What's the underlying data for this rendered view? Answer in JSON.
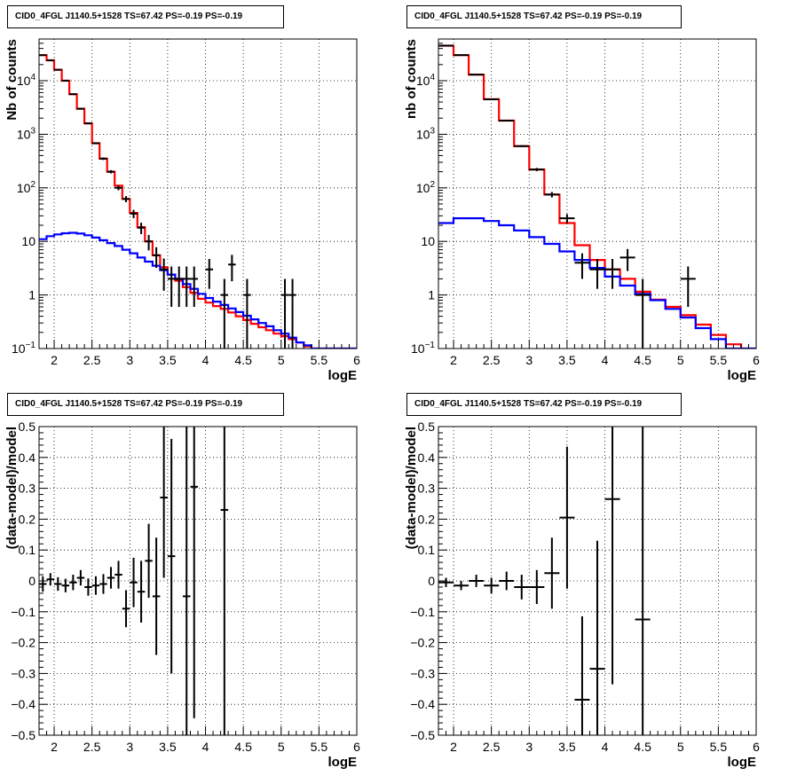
{
  "page": {
    "background": "#ffffff"
  },
  "chart_data": [
    {
      "type": "line",
      "title": "CID0_4FGL J1140.5+1528 TS=67.42 PS=-0.19 PS=-0.19",
      "xlabel": "logE",
      "ylabel": "Nb of counts",
      "xlim": [
        1.8,
        6
      ],
      "ylim": [
        0.1,
        60000
      ],
      "yscale": "log",
      "grid": true,
      "x_ticks": [
        2,
        2.5,
        3,
        3.5,
        4,
        4.5,
        5,
        5.5,
        6
      ],
      "x_tick_labels": [
        "2",
        "2.5",
        "3",
        "3.5",
        "4",
        "4.5",
        "5",
        "5.5",
        "6"
      ],
      "y_ticks": [
        0.1,
        1,
        10,
        100,
        1000,
        10000
      ],
      "y_tick_labels": [
        "10^-1",
        "1",
        "10",
        "10^2",
        "10^3",
        "10^4"
      ],
      "series": [
        {
          "kind": "step",
          "color": "#ff0000",
          "edges": [
            1.8,
            1.9,
            2.0,
            2.1,
            2.2,
            2.3,
            2.4,
            2.5,
            2.6,
            2.7,
            2.8,
            2.9,
            3.0,
            3.1,
            3.2,
            3.3,
            3.4,
            3.5,
            3.6,
            3.7,
            3.8,
            3.9,
            4.0,
            4.1,
            4.2,
            4.3,
            4.4,
            4.5,
            4.6,
            4.7,
            4.8,
            4.9,
            5.0,
            5.1,
            5.2,
            5.3,
            5.4,
            5.5,
            5.6,
            5.7,
            5.8,
            5.9,
            6.0
          ],
          "values": [
            30000,
            24000,
            16000,
            10000,
            5600,
            3000,
            1600,
            680,
            350,
            200,
            110,
            62,
            34,
            18.5,
            10,
            5.5,
            3.3,
            2.4,
            1.85,
            1.4,
            1.1,
            0.85,
            0.72,
            0.62,
            0.55,
            0.47,
            0.4,
            0.34,
            0.29,
            0.25,
            0.22,
            0.19,
            0.17,
            0.15,
            0.13,
            0.11,
            0.1,
            0.1,
            0.1,
            0.1,
            0.1,
            0.1
          ]
        },
        {
          "kind": "step",
          "color": "#0000ff",
          "edges": [
            1.8,
            1.9,
            2.0,
            2.1,
            2.2,
            2.3,
            2.4,
            2.5,
            2.6,
            2.7,
            2.8,
            2.9,
            3.0,
            3.1,
            3.2,
            3.3,
            3.4,
            3.5,
            3.6,
            3.7,
            3.8,
            3.9,
            4.0,
            4.1,
            4.2,
            4.3,
            4.4,
            4.5,
            4.6,
            4.7,
            4.8,
            4.9,
            5.0,
            5.1,
            5.2,
            5.3,
            5.4,
            5.5,
            5.6,
            5.7,
            5.8,
            5.9,
            6.0
          ],
          "values": [
            11,
            12.5,
            13.5,
            14.2,
            14.5,
            14,
            13,
            11.8,
            10.5,
            9.3,
            8.2,
            7,
            6,
            5,
            4.2,
            3.5,
            2.9,
            2.4,
            2,
            1.6,
            1.3,
            1.05,
            0.88,
            0.75,
            0.65,
            0.56,
            0.48,
            0.41,
            0.35,
            0.3,
            0.26,
            0.22,
            0.19,
            0.16,
            0.13,
            0.115,
            0.1,
            0.1,
            0.1,
            0.1,
            0.1,
            0.1
          ]
        },
        {
          "kind": "errorbar",
          "color": "#000000",
          "x": [
            1.85,
            1.95,
            2.05,
            2.15,
            2.25,
            2.35,
            2.45,
            2.55,
            2.65,
            2.75,
            2.85,
            2.95,
            3.05,
            3.15,
            3.25,
            3.35,
            3.45,
            3.55,
            3.65,
            3.75,
            3.85,
            4.05,
            4.25,
            4.35,
            4.55,
            5.05,
            5.15
          ],
          "y": [
            30000,
            24000,
            16000,
            10000,
            5600,
            3000,
            1600,
            680,
            350,
            200,
            100,
            62,
            33,
            18,
            10,
            5.5,
            3,
            2,
            2,
            2,
            2,
            3,
            1,
            3.7,
            1,
            1,
            1
          ],
          "err": [
            170,
            150,
            125,
            100,
            75,
            55,
            40,
            26,
            19,
            14,
            10,
            8,
            5.8,
            4.3,
            3.2,
            2.3,
            1.8,
            1.4,
            1.4,
            1.4,
            1.4,
            1.7,
            0.99,
            1.9,
            0.99,
            0.99,
            0.99
          ]
        }
      ]
    },
    {
      "type": "line",
      "title": "CID0_4FGL J1140.5+1528 TS=67.42 PS=-0.19 PS=-0.19",
      "xlabel": "logE",
      "ylabel": "nb of counts",
      "xlim": [
        1.8,
        6
      ],
      "ylim": [
        0.1,
        60000
      ],
      "yscale": "log",
      "grid": true,
      "x_ticks": [
        2,
        2.5,
        3,
        3.5,
        4,
        4.5,
        5,
        5.5,
        6
      ],
      "x_tick_labels": [
        "2",
        "2.5",
        "3",
        "3.5",
        "4",
        "4.5",
        "5",
        "5.5",
        "6"
      ],
      "y_ticks": [
        0.1,
        1,
        10,
        100,
        1000,
        10000
      ],
      "y_tick_labels": [
        "10^-1",
        "1",
        "10",
        "10^2",
        "10^3",
        "10^4"
      ],
      "series": [
        {
          "kind": "step",
          "color": "#ff0000",
          "edges": [
            1.8,
            2.0,
            2.2,
            2.4,
            2.6,
            2.8,
            3.0,
            3.2,
            3.4,
            3.6,
            3.8,
            4.0,
            4.2,
            4.4,
            4.6,
            4.8,
            5.0,
            5.2,
            5.4,
            5.6,
            5.8,
            6.0
          ],
          "values": [
            45000,
            30000,
            13000,
            4500,
            1800,
            600,
            220,
            75,
            22,
            8.5,
            4.5,
            3,
            2,
            1.15,
            0.82,
            0.6,
            0.42,
            0.28,
            0.18,
            0.12,
            0.1
          ]
        },
        {
          "kind": "step",
          "color": "#0000ff",
          "edges": [
            1.8,
            2.0,
            2.2,
            2.4,
            2.6,
            2.8,
            3.0,
            3.2,
            3.4,
            3.6,
            3.8,
            4.0,
            4.2,
            4.4,
            4.6,
            4.8,
            5.0,
            5.2,
            5.4,
            5.6,
            5.8,
            6.0
          ],
          "values": [
            22,
            27,
            27,
            24,
            20,
            16,
            12,
            9,
            6.5,
            4.5,
            3.2,
            2.2,
            1.5,
            1.05,
            0.8,
            0.55,
            0.38,
            0.24,
            0.15,
            0.1,
            0.1
          ]
        },
        {
          "kind": "errorbar",
          "color": "#000000",
          "x": [
            1.9,
            2.1,
            2.3,
            2.5,
            2.7,
            2.9,
            3.1,
            3.3,
            3.5,
            3.7,
            3.9,
            4.1,
            4.3,
            4.5,
            5.1
          ],
          "y": [
            45000,
            30000,
            13000,
            4500,
            1800,
            600,
            220,
            75,
            27,
            4,
            3,
            3,
            5,
            1,
            2
          ],
          "err": [
            210,
            173,
            114,
            67,
            42,
            24,
            15,
            8.7,
            5.2,
            2,
            1.7,
            1.7,
            2.2,
            0.99,
            1.4
          ]
        }
      ]
    },
    {
      "type": "scatter",
      "title": "CID0_4FGL J1140.5+1528 TS=67.42 PS=-0.19 PS=-0.19",
      "xlabel": "logE",
      "ylabel": "(data-model)/model",
      "xlim": [
        1.8,
        6
      ],
      "ylim": [
        -0.5,
        0.5
      ],
      "yscale": "linear",
      "grid": true,
      "x_ticks": [
        2,
        2.5,
        3,
        3.5,
        4,
        4.5,
        5,
        5.5,
        6
      ],
      "x_tick_labels": [
        "2",
        "2.5",
        "3",
        "3.5",
        "4",
        "4.5",
        "5",
        "5.5",
        "6"
      ],
      "y_ticks": [
        -0.5,
        -0.4,
        -0.3,
        -0.2,
        -0.1,
        0,
        0.1,
        0.2,
        0.3,
        0.4,
        0.5
      ],
      "y_tick_labels": [
        "−0.5",
        "−0.4",
        "−0.3",
        "−0.2",
        "−0.1",
        "0",
        "0.1",
        "0.2",
        "0.3",
        "0.4",
        "0.5"
      ],
      "series": [
        {
          "kind": "errorbar",
          "color": "#000000",
          "x": [
            1.85,
            1.95,
            2.05,
            2.15,
            2.25,
            2.35,
            2.45,
            2.55,
            2.65,
            2.75,
            2.85,
            2.95,
            3.05,
            3.15,
            3.25,
            3.35,
            3.45,
            3.55,
            3.75,
            3.85,
            4.25
          ],
          "y": [
            -0.01,
            0.005,
            -0.01,
            -0.015,
            -0.005,
            0.01,
            -0.02,
            -0.015,
            -0.01,
            0.01,
            0.02,
            -0.09,
            -0.005,
            -0.035,
            0.065,
            -0.05,
            0.27,
            0.08,
            -0.05,
            0.305,
            0.23
          ],
          "err": [
            0.025,
            0.02,
            0.022,
            0.022,
            0.025,
            0.025,
            0.028,
            0.03,
            0.032,
            0.035,
            0.045,
            0.06,
            0.08,
            0.1,
            0.12,
            0.19,
            0.26,
            0.38,
            0.75,
            0.75,
            1.0
          ]
        }
      ]
    },
    {
      "type": "scatter",
      "title": "CID0_4FGL J1140.5+1528 TS=67.42 PS=-0.19 PS=-0.19",
      "xlabel": "logE",
      "ylabel": "(data-model)/model",
      "xlim": [
        1.8,
        6
      ],
      "ylim": [
        -0.5,
        0.5
      ],
      "yscale": "linear",
      "grid": true,
      "x_ticks": [
        2,
        2.5,
        3,
        3.5,
        4,
        4.5,
        5,
        5.5,
        6
      ],
      "x_tick_labels": [
        "2",
        "2.5",
        "3",
        "3.5",
        "4",
        "4.5",
        "5",
        "5.5",
        "6"
      ],
      "y_ticks": [
        -0.5,
        -0.4,
        -0.3,
        -0.2,
        -0.1,
        0,
        0.1,
        0.2,
        0.3,
        0.4,
        0.5
      ],
      "y_tick_labels": [
        "−0.5",
        "−0.4",
        "−0.3",
        "−0.2",
        "−0.1",
        "0",
        "0.1",
        "0.2",
        "0.3",
        "0.4",
        "0.5"
      ],
      "series": [
        {
          "kind": "errorbar",
          "color": "#000000",
          "x": [
            1.9,
            2.1,
            2.3,
            2.5,
            2.7,
            2.9,
            3.1,
            3.3,
            3.5,
            3.7,
            3.9,
            4.1,
            4.5
          ],
          "y": [
            -0.005,
            -0.015,
            0.0,
            -0.015,
            0.0,
            -0.02,
            -0.02,
            0.025,
            0.205,
            -0.385,
            -0.285,
            0.265,
            -0.125
          ],
          "err": [
            0.015,
            0.015,
            0.02,
            0.025,
            0.03,
            0.04,
            0.055,
            0.115,
            0.23,
            0.27,
            0.415,
            0.6,
            0.9
          ]
        }
      ]
    }
  ]
}
